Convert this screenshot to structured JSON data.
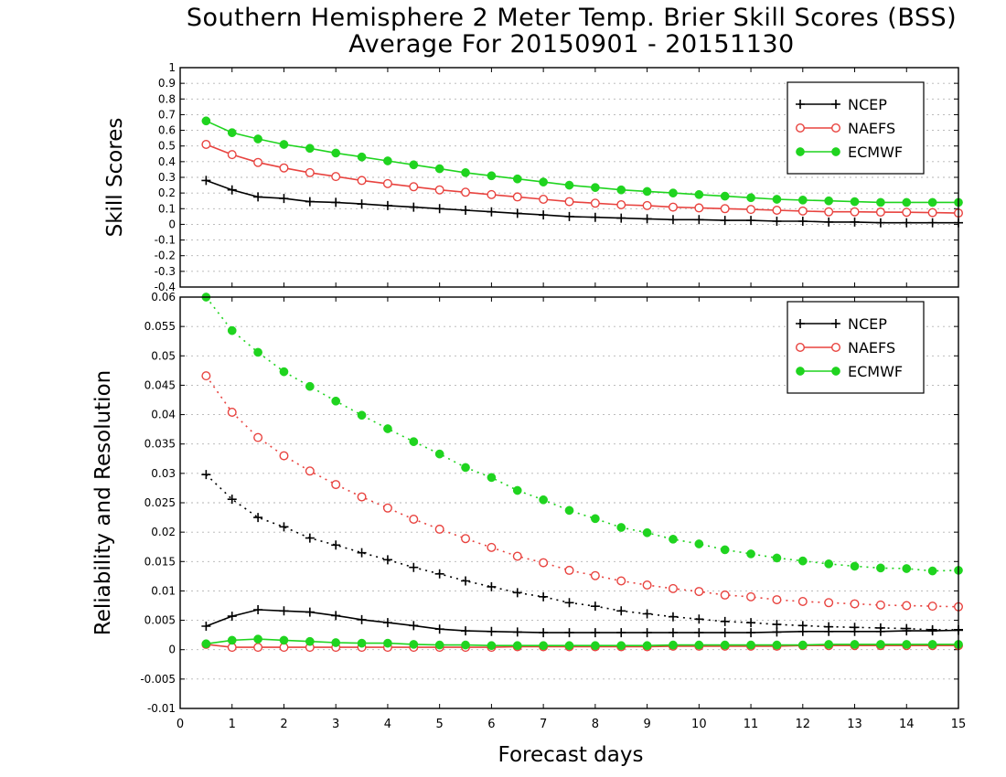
{
  "header": {
    "title": "Southern Hemisphere 2 Meter Temp. Brier Skill Scores (BSS)",
    "subtitle": "Average For 20150901 - 20151130"
  },
  "x_axis": {
    "label": "Forecast days",
    "ticks": [
      "0",
      "1",
      "2",
      "3",
      "4",
      "5",
      "6",
      "7",
      "8",
      "9",
      "10",
      "11",
      "12",
      "13",
      "14",
      "15"
    ],
    "range": [
      0,
      15
    ]
  },
  "colors": {
    "NCEP": "#000000",
    "NAEFS": "#e8433f",
    "ECMWF": "#1fd41f"
  },
  "chart_data": [
    {
      "type": "line",
      "ylabel": "Skill Scores",
      "ylim": [
        -0.4,
        1
      ],
      "yticks": [
        "-0.4",
        "-0.3",
        "-0.2",
        "-0.1",
        "0",
        "0.1",
        "0.2",
        "0.3",
        "0.4",
        "0.5",
        "0.6",
        "0.7",
        "0.8",
        "0.9",
        "1"
      ],
      "grid": true,
      "legend_position": "top-right",
      "x": [
        0.5,
        1,
        1.5,
        2,
        2.5,
        3,
        3.5,
        4,
        4.5,
        5,
        5.5,
        6,
        6.5,
        7,
        7.5,
        8,
        8.5,
        9,
        9.5,
        10,
        10.5,
        11,
        11.5,
        12,
        12.5,
        13,
        13.5,
        14,
        14.5,
        15
      ],
      "series": [
        {
          "name": "NCEP",
          "marker": "plus",
          "style": "solid",
          "values": [
            0.28,
            0.22,
            0.175,
            0.165,
            0.145,
            0.14,
            0.13,
            0.12,
            0.11,
            0.1,
            0.09,
            0.08,
            0.07,
            0.06,
            0.05,
            0.045,
            0.04,
            0.035,
            0.03,
            0.03,
            0.025,
            0.025,
            0.02,
            0.02,
            0.015,
            0.015,
            0.01,
            0.01,
            0.01,
            0.01
          ]
        },
        {
          "name": "NAEFS",
          "marker": "open-circle",
          "style": "solid",
          "values": [
            0.51,
            0.445,
            0.395,
            0.36,
            0.33,
            0.305,
            0.28,
            0.26,
            0.24,
            0.22,
            0.205,
            0.19,
            0.175,
            0.16,
            0.145,
            0.135,
            0.125,
            0.12,
            0.11,
            0.105,
            0.1,
            0.095,
            0.09,
            0.085,
            0.08,
            0.08,
            0.078,
            0.077,
            0.075,
            0.072
          ]
        },
        {
          "name": "ECMWF",
          "marker": "filled-circle",
          "style": "solid",
          "values": [
            0.66,
            0.585,
            0.545,
            0.51,
            0.485,
            0.455,
            0.43,
            0.405,
            0.38,
            0.355,
            0.33,
            0.31,
            0.29,
            0.27,
            0.25,
            0.235,
            0.22,
            0.21,
            0.2,
            0.19,
            0.18,
            0.17,
            0.16,
            0.155,
            0.15,
            0.145,
            0.14,
            0.14,
            0.14,
            0.14
          ]
        }
      ]
    },
    {
      "type": "line",
      "ylabel": "Reliability and Resolution",
      "ylim": [
        -0.01,
        0.06
      ],
      "yticks": [
        "-0.01",
        "-0.005",
        "0",
        "0.005",
        "0.01",
        "0.015",
        "0.02",
        "0.025",
        "0.03",
        "0.035",
        "0.04",
        "0.045",
        "0.05",
        "0.055",
        "0.06"
      ],
      "grid": true,
      "legend_position": "top-right",
      "x": [
        0.5,
        1,
        1.5,
        2,
        2.5,
        3,
        3.5,
        4,
        4.5,
        5,
        5.5,
        6,
        6.5,
        7,
        7.5,
        8,
        8.5,
        9,
        9.5,
        10,
        10.5,
        11,
        11.5,
        12,
        12.5,
        13,
        13.5,
        14,
        14.5,
        15
      ],
      "series": [
        {
          "name": "NCEP",
          "marker": "plus",
          "style": "dotted",
          "group": "resolution",
          "values": [
            0.0298,
            0.0256,
            0.0225,
            0.0209,
            0.019,
            0.0178,
            0.0165,
            0.0153,
            0.014,
            0.0129,
            0.0117,
            0.0107,
            0.0097,
            0.009,
            0.008,
            0.0074,
            0.0066,
            0.0061,
            0.0056,
            0.0052,
            0.0048,
            0.0046,
            0.0043,
            0.0041,
            0.0039,
            0.0038,
            0.0037,
            0.0036,
            0.0034,
            0.0034
          ]
        },
        {
          "name": "NAEFS",
          "marker": "open-circle",
          "style": "dotted",
          "group": "resolution",
          "values": [
            0.0466,
            0.0404,
            0.0361,
            0.033,
            0.0304,
            0.0281,
            0.026,
            0.0241,
            0.0222,
            0.0205,
            0.0189,
            0.0174,
            0.0159,
            0.0148,
            0.0135,
            0.0126,
            0.0117,
            0.011,
            0.0104,
            0.0099,
            0.0093,
            0.009,
            0.0085,
            0.0082,
            0.008,
            0.0078,
            0.0076,
            0.0075,
            0.0074,
            0.0073
          ]
        },
        {
          "name": "ECMWF",
          "marker": "filled-circle",
          "style": "dotted",
          "group": "resolution",
          "values": [
            0.06,
            0.0543,
            0.0506,
            0.0473,
            0.0448,
            0.0423,
            0.0399,
            0.0376,
            0.0354,
            0.0333,
            0.031,
            0.0293,
            0.0271,
            0.0255,
            0.0237,
            0.0223,
            0.0208,
            0.0199,
            0.0188,
            0.018,
            0.017,
            0.0163,
            0.0156,
            0.0151,
            0.0146,
            0.0142,
            0.0139,
            0.0138,
            0.0134,
            0.0135
          ]
        },
        {
          "name": "NCEP",
          "marker": "plus",
          "style": "solid",
          "group": "reliability",
          "values": [
            0.004,
            0.0057,
            0.0068,
            0.0066,
            0.0064,
            0.0058,
            0.0051,
            0.0046,
            0.0041,
            0.0035,
            0.0032,
            0.0031,
            0.003,
            0.0029,
            0.0029,
            0.0029,
            0.0029,
            0.0029,
            0.0029,
            0.0029,
            0.0029,
            0.0029,
            0.003,
            0.0031,
            0.0031,
            0.0031,
            0.0031,
            0.0032,
            0.0032,
            0.0033
          ]
        },
        {
          "name": "NAEFS",
          "marker": "open-circle",
          "style": "solid",
          "group": "reliability",
          "values": [
            0.0009,
            0.0004,
            0.0004,
            0.0004,
            0.0004,
            0.0004,
            0.0004,
            0.0004,
            0.0004,
            0.0004,
            0.0004,
            0.0004,
            0.0005,
            0.0005,
            0.0005,
            0.0005,
            0.0005,
            0.0005,
            0.0006,
            0.0006,
            0.0006,
            0.0006,
            0.0006,
            0.0007,
            0.0007,
            0.0007,
            0.0007,
            0.0007,
            0.0007,
            0.0007
          ]
        },
        {
          "name": "ECMWF",
          "marker": "filled-circle",
          "style": "solid",
          "group": "reliability",
          "values": [
            0.001,
            0.0016,
            0.0018,
            0.0016,
            0.0014,
            0.0012,
            0.0011,
            0.0011,
            0.0009,
            0.0008,
            0.0008,
            0.0007,
            0.0007,
            0.0007,
            0.0007,
            0.0007,
            0.0007,
            0.0007,
            0.0008,
            0.0008,
            0.0008,
            0.0008,
            0.0008,
            0.0008,
            0.0009,
            0.0009,
            0.0009,
            0.0009,
            0.0009,
            0.0009
          ]
        }
      ]
    }
  ]
}
